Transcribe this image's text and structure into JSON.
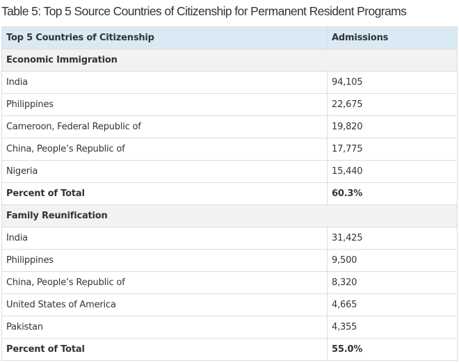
{
  "title": "Table 5: Top 5 Source Countries of Citizenship for Permanent Resident Programs",
  "headers": {
    "country": "Top 5 Countries of Citizenship",
    "admissions": "Admissions"
  },
  "sections": [
    {
      "name": "Economic Immigration",
      "rows": [
        {
          "country": "India",
          "admissions": "94,105"
        },
        {
          "country": "Philippines",
          "admissions": "22,675"
        },
        {
          "country": "Cameroon, Federal Republic of",
          "admissions": "19,820"
        },
        {
          "country": "China, People’s Republic of",
          "admissions": "17,775"
        },
        {
          "country": "Nigeria",
          "admissions": "15,440"
        }
      ],
      "total_label": "Percent of Total",
      "total_value": "60.3%"
    },
    {
      "name": "Family Reunification",
      "rows": [
        {
          "country": "India",
          "admissions": "31,425"
        },
        {
          "country": "Philippines",
          "admissions": "9,500"
        },
        {
          "country": "China, People’s Republic of",
          "admissions": "8,320"
        },
        {
          "country": "United States of America",
          "admissions": "4,665"
        },
        {
          "country": "Pakistan",
          "admissions": "4,355"
        }
      ],
      "total_label": "Percent of Total",
      "total_value": "55.0%"
    }
  ]
}
